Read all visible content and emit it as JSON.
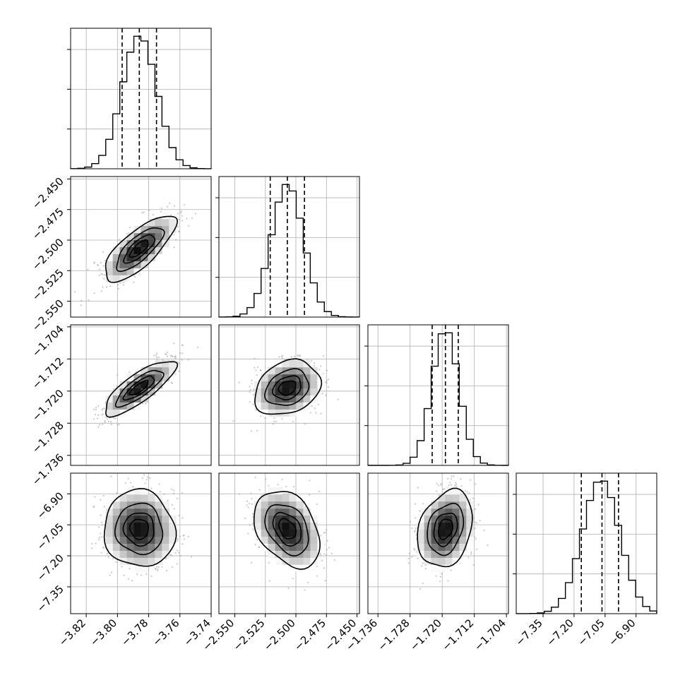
{
  "chart_data": {
    "type": "corner",
    "parameters": [
      {
        "range": [
          -3.83,
          -3.74
        ],
        "ticks": [
          -3.82,
          -3.8,
          -3.78,
          -3.76,
          -3.74
        ],
        "tick_labels": [
          "−3.82",
          "−3.80",
          "−3.78",
          "−3.76",
          "−3.74"
        ],
        "quantiles": [
          -3.797,
          -3.786,
          -3.775
        ],
        "mean": -3.786,
        "sd": 0.011
      },
      {
        "range": [
          -2.563,
          -2.448
        ],
        "ticks": [
          -2.55,
          -2.525,
          -2.5,
          -2.475,
          -2.45
        ],
        "tick_labels": [
          "−2.550",
          "−2.525",
          "−2.500",
          "−2.475",
          "−2.450"
        ],
        "quantiles": [
          -2.521,
          -2.507,
          -2.493
        ],
        "mean": -2.507,
        "sd": 0.013
      },
      {
        "range": [
          -1.7385,
          -1.7035
        ],
        "ticks": [
          -1.736,
          -1.728,
          -1.72,
          -1.712,
          -1.704
        ],
        "tick_labels": [
          "−1.736",
          "−1.728",
          "−1.720",
          "−1.712",
          "−1.704"
        ],
        "quantiles": [
          -1.7225,
          -1.7192,
          -1.716
        ],
        "mean": -1.7192,
        "sd": 0.0033
      },
      {
        "range": [
          -7.48,
          -6.8
        ],
        "ticks": [
          -7.35,
          -7.2,
          -7.05,
          -6.9
        ],
        "tick_labels": [
          "−7.35",
          "−7.20",
          "−7.05",
          "−6.90"
        ],
        "quantiles": [
          -7.165,
          -7.065,
          -6.985
        ],
        "mean": -7.07,
        "sd": 0.09
      }
    ],
    "correlations": [
      [
        1.0,
        0.75,
        0.8,
        -0.05
      ],
      [
        0.75,
        1.0,
        0.25,
        -0.35
      ],
      [
        0.8,
        0.25,
        1.0,
        0.25
      ],
      [
        -0.05,
        -0.35,
        0.25,
        1.0
      ]
    ],
    "contour_levels_sigma": [
      0.5,
      1.0,
      1.5,
      2.0
    ],
    "histogram_bins": 20,
    "grid": true
  }
}
